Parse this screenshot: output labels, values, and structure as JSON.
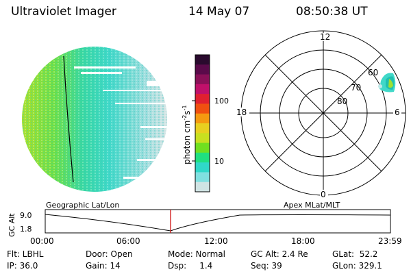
{
  "header": {
    "instrument": "Ultraviolet Imager",
    "date": "14 May 07",
    "time": "08:50:38 UT"
  },
  "colorbar": {
    "unit_label": "photon cm",
    "unit_sup1": "-2",
    "unit_mid": "s",
    "unit_sup2": "-1",
    "tick_labels": [
      "100",
      "10"
    ],
    "colors_top_to_bottom": [
      "#2a0a2e",
      "#5a0a4a",
      "#8a1058",
      "#c0106a",
      "#e02030",
      "#f05010",
      "#f59a10",
      "#e8d020",
      "#c8e020",
      "#70e020",
      "#20e080",
      "#30d8c8",
      "#80e0e0",
      "#d0e4e4"
    ]
  },
  "polar": {
    "mlt_labels": {
      "top": "12",
      "left": "18",
      "right": "6",
      "bottom": "0"
    },
    "lat_labels": [
      "60",
      "70",
      "80"
    ]
  },
  "timeline": {
    "left_label": "Geographic Lat/Lon",
    "right_label": "Apex MLat/MLT",
    "y_axis_label": "GC Alt",
    "y_ticks": [
      "9.0",
      "1.8"
    ],
    "x_ticks": [
      "00:00",
      "06:00",
      "12:00",
      "18:00",
      "23:59"
    ]
  },
  "info": {
    "flt": "Flt: LBHL",
    "ip": "IP: 36.0",
    "door": "Door: Open",
    "gain": "Gain: 14",
    "mode": "Mode: Normal",
    "dsp": "Dsp:     1.4",
    "gcalt": "GC Alt: 2.4 Re",
    "seq": "Seq: 39",
    "glat": "GLat:  52.2",
    "glon": "GLon: 329.1"
  },
  "colors": {
    "disk_green": "#a0e030",
    "disk_cyan": "#40d8c8",
    "marker_red": "#d01010"
  }
}
